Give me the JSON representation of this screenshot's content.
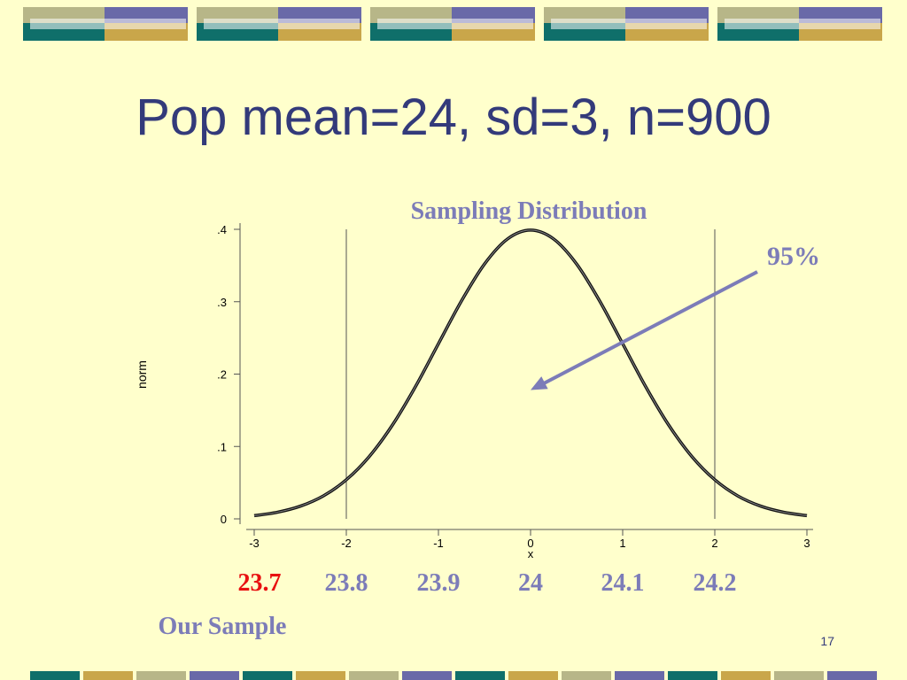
{
  "slide": {
    "title": "Pop mean=24, sd=3, n=900",
    "page_number": "17"
  },
  "colors": {
    "background": "#ffffcc",
    "title": "#333a7a",
    "label": "#7c7cb8",
    "highlight": "#e81010",
    "band_teal": "#0f6f6a",
    "band_olive": "#b7b688",
    "band_purple": "#6969a8",
    "band_gold": "#c9a64a"
  },
  "chart_data": {
    "type": "line",
    "title": "Sampling Distribution",
    "xlabel": "x",
    "ylabel": "norm",
    "xlim": [
      -3,
      3
    ],
    "ylim": [
      0,
      0.4
    ],
    "x_ticks": [
      "-3",
      "-2",
      "-1",
      "0",
      "1",
      "2",
      "3"
    ],
    "y_ticks": [
      ".4",
      ".3",
      ".2",
      ".1",
      "0"
    ],
    "y_tick_values": [
      0.4,
      0.3,
      0.2,
      0.1,
      0
    ],
    "series": [
      {
        "x": [
          -3,
          -2.75,
          -2.5,
          -2.25,
          -2,
          -1.75,
          -1.5,
          -1.25,
          -1,
          -0.75,
          -0.5,
          -0.25,
          0,
          0.25,
          0.5,
          0.75,
          1,
          1.25,
          1.5,
          1.75,
          2,
          2.25,
          2.5,
          2.75,
          3
        ],
        "y": [
          0.0044,
          0.0091,
          0.0175,
          0.0317,
          0.054,
          0.0863,
          0.1295,
          0.1826,
          0.242,
          0.3011,
          0.3521,
          0.3867,
          0.3989,
          0.3867,
          0.3521,
          0.3011,
          0.242,
          0.1826,
          0.1295,
          0.0863,
          0.054,
          0.0317,
          0.0175,
          0.0091,
          0.0044
        ]
      }
    ],
    "vertical_lines": [
      -2,
      2
    ],
    "annotation": {
      "text": "95%",
      "arrow_points_to": {
        "x": 0,
        "y": 0.2
      }
    },
    "sample_axis": {
      "labels": [
        "23.7",
        "23.8",
        "23.9",
        "24",
        "24.1",
        "24.2"
      ],
      "positions": [
        -3,
        -2,
        -1,
        0,
        1,
        2
      ],
      "highlight_index": 0,
      "caption": "Our Sample"
    }
  }
}
